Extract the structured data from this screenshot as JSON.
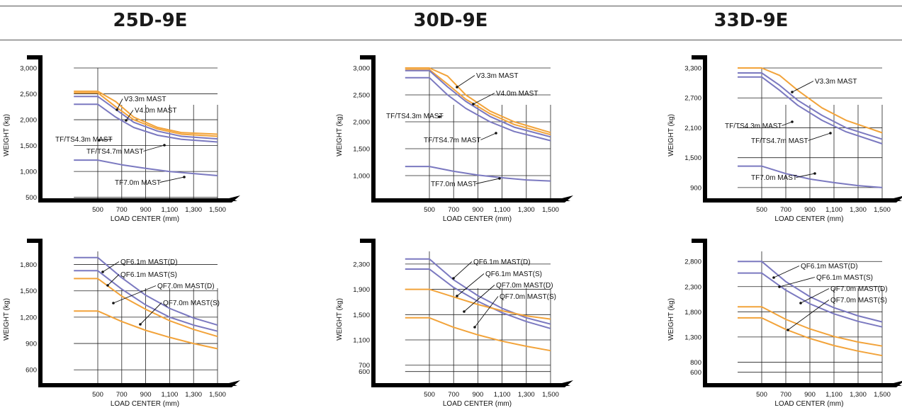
{
  "headers": [
    "25D-9E",
    "30D-9E",
    "33D-9E"
  ],
  "colors": {
    "blue": "#7b79c0",
    "orange": "#f2a33a",
    "axis": "#000000"
  },
  "chart_data": [
    {
      "id": "c25-top",
      "type": "line",
      "model": "25D-9E",
      "xlabel": "LOAD CENTER (mm)",
      "ylabel": "WEIGHT (kg)",
      "xlim": [
        300,
        1500
      ],
      "ylim": [
        400,
        3000
      ],
      "xticks": [
        500,
        700,
        900,
        1100,
        1300,
        1500
      ],
      "xticklabels": [
        "500",
        "700",
        "900",
        "1,100",
        "1,300",
        "1,500"
      ],
      "yticks": [
        500,
        1000,
        1500,
        2000,
        2500,
        3000
      ],
      "yticklabels": [
        "500",
        "1,000",
        "1,500",
        "2,000",
        "2,500",
        "3,000"
      ],
      "grid": true,
      "series": [
        {
          "color": "orange",
          "x": [
            300,
            500,
            650,
            800,
            1000,
            1200,
            1500
          ],
          "y": [
            2550,
            2550,
            2350,
            2050,
            1850,
            1750,
            1720
          ]
        },
        {
          "color": "orange",
          "x": [
            300,
            500,
            650,
            800,
            1000,
            1200,
            1500
          ],
          "y": [
            2520,
            2520,
            2250,
            2000,
            1820,
            1720,
            1680
          ]
        },
        {
          "color": "blue",
          "x": [
            300,
            500,
            650,
            800,
            1000,
            1200,
            1500
          ],
          "y": [
            2450,
            2450,
            2200,
            1950,
            1780,
            1680,
            1630
          ]
        },
        {
          "color": "blue",
          "x": [
            300,
            500,
            650,
            800,
            1000,
            1200,
            1500
          ],
          "y": [
            2300,
            2300,
            2050,
            1850,
            1700,
            1620,
            1570
          ]
        },
        {
          "color": "blue",
          "x": [
            300,
            500,
            700,
            900,
            1100,
            1300,
            1500
          ],
          "y": [
            1220,
            1220,
            1130,
            1060,
            1000,
            960,
            920
          ]
        }
      ],
      "annotations": [
        "V3.3m MAST",
        "V4.0m MAST",
        "TF/TS4.3m MAST",
        "TF/TS4.7m MAST",
        "TF7.0m MAST"
      ]
    },
    {
      "id": "c30-top",
      "type": "line",
      "model": "30D-9E",
      "xlabel": "LOAD CENTER (mm)",
      "ylabel": "WEIGHT (kg)",
      "xlim": [
        300,
        1500
      ],
      "ylim": [
        500,
        3000
      ],
      "xticks": [
        500,
        700,
        900,
        1100,
        1300,
        1500
      ],
      "xticklabels": [
        "500",
        "700",
        "900",
        "1,100",
        "1,300",
        "1,500"
      ],
      "yticks": [
        1000,
        1500,
        2000,
        2500,
        3000
      ],
      "yticklabels": [
        "1,000",
        "1,500",
        "2,000",
        "2,500",
        "3,000"
      ],
      "grid": true,
      "series": [
        {
          "color": "orange",
          "x": [
            300,
            500,
            650,
            800,
            1000,
            1200,
            1500
          ],
          "y": [
            3000,
            3000,
            2850,
            2500,
            2200,
            2000,
            1800
          ]
        },
        {
          "color": "orange",
          "x": [
            300,
            500,
            650,
            800,
            1000,
            1200,
            1500
          ],
          "y": [
            2970,
            2970,
            2700,
            2420,
            2150,
            1950,
            1760
          ]
        },
        {
          "color": "blue",
          "x": [
            300,
            500,
            650,
            800,
            1000,
            1200,
            1500
          ],
          "y": [
            2950,
            2950,
            2650,
            2380,
            2100,
            1900,
            1720
          ]
        },
        {
          "color": "blue",
          "x": [
            300,
            500,
            650,
            800,
            1000,
            1200,
            1500
          ],
          "y": [
            2820,
            2820,
            2500,
            2250,
            2000,
            1820,
            1650
          ]
        },
        {
          "color": "blue",
          "x": [
            300,
            500,
            700,
            900,
            1100,
            1300,
            1500
          ],
          "y": [
            1170,
            1170,
            1080,
            1010,
            960,
            920,
            900
          ]
        }
      ],
      "annotations": [
        "V3.3m MAST",
        "V4.0m MAST",
        "TF/TS4.3m MAST",
        "TF/TS4.7m MAST",
        "TF7.0m MAST"
      ]
    },
    {
      "id": "c33-top",
      "type": "line",
      "model": "33D-9E",
      "xlabel": "LOAD CENTER (mm)",
      "ylabel": "WEIGHT (kg)",
      "xlim": [
        300,
        1500
      ],
      "ylim": [
        600,
        3300
      ],
      "xticks": [
        500,
        700,
        900,
        1100,
        1300,
        1500
      ],
      "xticklabels": [
        "500",
        "700",
        "900",
        "1,100",
        "1,300",
        "1,500"
      ],
      "yticks": [
        900,
        1500,
        2100,
        2700,
        3300
      ],
      "yticklabels": [
        "900",
        "1,500",
        "2,100",
        "2,700",
        "3,300"
      ],
      "grid": true,
      "series": [
        {
          "color": "orange",
          "x": [
            300,
            500,
            650,
            800,
            1000,
            1200,
            1500
          ],
          "y": [
            3300,
            3300,
            3150,
            2850,
            2500,
            2250,
            2000
          ]
        },
        {
          "color": "blue",
          "x": [
            300,
            500,
            650,
            800,
            1000,
            1200,
            1500
          ],
          "y": [
            3200,
            3200,
            2950,
            2650,
            2350,
            2100,
            1870
          ]
        },
        {
          "color": "blue",
          "x": [
            300,
            500,
            650,
            800,
            1000,
            1200,
            1500
          ],
          "y": [
            3120,
            3120,
            2850,
            2550,
            2250,
            2020,
            1780
          ]
        },
        {
          "color": "blue",
          "x": [
            300,
            500,
            700,
            900,
            1100,
            1300,
            1500
          ],
          "y": [
            1330,
            1330,
            1180,
            1070,
            1000,
            940,
            900
          ]
        }
      ],
      "annotations": [
        "V3.3m MAST",
        "TF/TS4.3m MAST",
        "TF/TS4.7m MAST",
        "TF7.0m MAST"
      ]
    },
    {
      "id": "c25-bot",
      "type": "line",
      "model": "25D-9E",
      "xlabel": "LOAD CENTER (mm)",
      "ylabel": "WEIGHT (kg)",
      "xlim": [
        300,
        1500
      ],
      "ylim": [
        400,
        1950
      ],
      "xticks": [
        500,
        700,
        900,
        1100,
        1300,
        1500
      ],
      "xticklabels": [
        "500",
        "700",
        "900",
        "1,100",
        "1,300",
        "1,500"
      ],
      "yticks": [
        600,
        900,
        1200,
        1500,
        1800
      ],
      "yticklabels": [
        "600",
        "900",
        "1,200",
        "1,500",
        "1,800"
      ],
      "grid": true,
      "series": [
        {
          "color": "blue",
          "x": [
            300,
            500,
            700,
            900,
            1100,
            1300,
            1500
          ],
          "y": [
            1880,
            1880,
            1650,
            1450,
            1300,
            1190,
            1110
          ]
        },
        {
          "color": "blue",
          "x": [
            300,
            500,
            700,
            900,
            1100,
            1300,
            1500
          ],
          "y": [
            1730,
            1730,
            1520,
            1340,
            1200,
            1110,
            1040
          ]
        },
        {
          "color": "orange",
          "x": [
            300,
            500,
            700,
            900,
            1100,
            1300,
            1500
          ],
          "y": [
            1640,
            1640,
            1440,
            1290,
            1160,
            1060,
            980
          ]
        },
        {
          "color": "orange",
          "x": [
            300,
            500,
            700,
            900,
            1100,
            1300,
            1500
          ],
          "y": [
            1270,
            1270,
            1150,
            1050,
            970,
            900,
            840
          ]
        }
      ],
      "annotations": [
        "QF6.1m MAST(D)",
        "QF6.1m MAST(S)",
        "QF7.0m MAST(D)",
        "QF7.0m MAST(S)"
      ]
    },
    {
      "id": "c30-bot",
      "type": "line",
      "model": "30D-9E",
      "xlabel": "LOAD CENTER (mm)",
      "ylabel": "WEIGHT (kg)",
      "xlim": [
        300,
        1500
      ],
      "ylim": [
        350,
        2500
      ],
      "xticks": [
        500,
        700,
        900,
        1100,
        1300,
        1500
      ],
      "xticklabels": [
        "500",
        "700",
        "900",
        "1,100",
        "1,300",
        "1,500"
      ],
      "yticks": [
        600,
        700,
        1100,
        1500,
        1900,
        2300
      ],
      "yticklabels": [
        "600",
        "700",
        "1,100",
        "1,500",
        "1,900",
        "2,300"
      ],
      "grid": true,
      "series": [
        {
          "color": "blue",
          "x": [
            300,
            500,
            700,
            900,
            1100,
            1300,
            1500
          ],
          "y": [
            2380,
            2380,
            2050,
            1800,
            1600,
            1450,
            1350
          ]
        },
        {
          "color": "blue",
          "x": [
            300,
            500,
            700,
            900,
            1100,
            1300,
            1500
          ],
          "y": [
            2220,
            2220,
            1930,
            1710,
            1530,
            1390,
            1280
          ]
        },
        {
          "color": "orange",
          "x": [
            300,
            500,
            700,
            900,
            1100,
            1300,
            1500
          ],
          "y": [
            1900,
            1900,
            1780,
            1660,
            1560,
            1480,
            1430
          ]
        },
        {
          "color": "orange",
          "x": [
            300,
            500,
            700,
            900,
            1100,
            1300,
            1500
          ],
          "y": [
            1450,
            1450,
            1300,
            1180,
            1080,
            1000,
            930
          ]
        }
      ],
      "annotations": [
        "QF6.1m MAST(D)",
        "QF6.1m MAST(S)",
        "QF7.0m MAST(D)",
        "QF7.0m MAST(S)"
      ]
    },
    {
      "id": "c33-bot",
      "type": "line",
      "model": "33D-9E",
      "xlabel": "LOAD CENTER (mm)",
      "ylabel": "WEIGHT (kg)",
      "xlim": [
        300,
        1500
      ],
      "ylim": [
        300,
        3000
      ],
      "xticks": [
        500,
        700,
        900,
        1100,
        1300,
        1500
      ],
      "xticklabels": [
        "500",
        "700",
        "900",
        "1,100",
        "1,300",
        "1,500"
      ],
      "yticks": [
        600,
        800,
        1300,
        1800,
        2300,
        2800
      ],
      "yticklabels": [
        "600",
        "800",
        "1,300",
        "1,800",
        "2,300",
        "2,800"
      ],
      "grid": true,
      "series": [
        {
          "color": "blue",
          "x": [
            300,
            500,
            700,
            900,
            1100,
            1300,
            1500
          ],
          "y": [
            2800,
            2800,
            2400,
            2100,
            1880,
            1720,
            1600
          ]
        },
        {
          "color": "blue",
          "x": [
            300,
            500,
            700,
            900,
            1100,
            1300,
            1500
          ],
          "y": [
            2570,
            2570,
            2230,
            1960,
            1760,
            1610,
            1500
          ]
        },
        {
          "color": "orange",
          "x": [
            300,
            500,
            700,
            900,
            1100,
            1300,
            1500
          ],
          "y": [
            1900,
            1900,
            1650,
            1460,
            1310,
            1200,
            1120
          ]
        },
        {
          "color": "orange",
          "x": [
            300,
            500,
            700,
            900,
            1100,
            1300,
            1500
          ],
          "y": [
            1680,
            1680,
            1450,
            1270,
            1130,
            1020,
            930
          ]
        }
      ],
      "annotations": [
        "QF6.1m MAST(D)",
        "QF6.1m MAST(S)",
        "QF7.0m MAST(D)",
        "QF7.0m MAST(S)"
      ]
    }
  ]
}
